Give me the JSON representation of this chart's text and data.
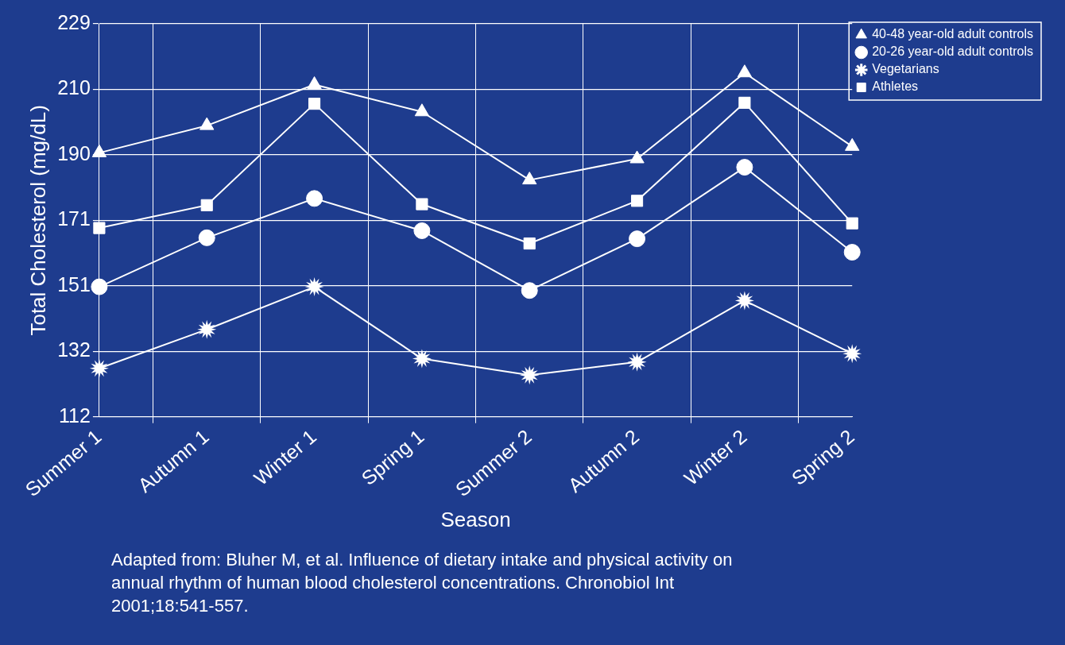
{
  "chart_data": {
    "type": "line",
    "xlabel": "Season",
    "ylabel": "Total Cholesterol (mg/dL)",
    "categories": [
      "Summer 1",
      "Autumn 1",
      "Winter 1",
      "Spring 1",
      "Summer 2",
      "Autumn 2",
      "Winter 2",
      "Spring 2"
    ],
    "series": [
      {
        "name": "40-48 year-old adult controls",
        "color": "#ffffff",
        "marker": "triangle",
        "values": [
          190.6,
          198.7,
          210.9,
          202.8,
          182.5,
          188.8,
          214.4,
          192.5
        ]
      },
      {
        "name": "20-26 year-old adult controls",
        "color": "#ffffff",
        "marker": "circle",
        "values": [
          150.7,
          165.3,
          177,
          167.4,
          149.6,
          165,
          186.3,
          161
        ]
      },
      {
        "name": "Vegetarians",
        "color": "#ffffff",
        "marker": "star",
        "values": [
          126.4,
          138,
          150.7,
          129.3,
          124.4,
          128.3,
          146.6,
          130.8
        ]
      },
      {
        "name": "Athletes",
        "color": "#ffffff",
        "marker": "square",
        "values": [
          168.2,
          175,
          205.2,
          175.3,
          163.6,
          176.3,
          205.5,
          169.6
        ]
      }
    ],
    "ylim": [
      112,
      229
    ],
    "yticks": [
      112,
      {
        "value": 131.5,
        "label": "132"
      },
      151,
      {
        "value": 170.5,
        "label": "171"
      },
      190,
      {
        "value": 209.5,
        "label": "210"
      },
      229
    ],
    "grid": true,
    "legend": "top right",
    "line_style": "solid",
    "annotations": [
      "Adapted from: Bluher M, et al. Influence of dietary intake and physical activity on annual rhythm of human blood cholesterol concentrations. Chronobiol Int 2001;18:541-557."
    ]
  }
}
